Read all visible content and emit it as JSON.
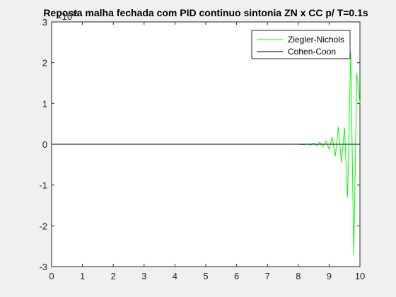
{
  "chart_data": {
    "type": "line",
    "title": "Reposta malha fechada com PID continuo sintonia ZN x CC p/ T=0.1s",
    "xlabel": "",
    "ylabel": "",
    "xlim": [
      0,
      10
    ],
    "ylim": [
      -3,
      3
    ],
    "x_ticks": [
      "0",
      "1",
      "2",
      "3",
      "4",
      "5",
      "6",
      "7",
      "8",
      "9",
      "10"
    ],
    "y_ticks": [
      "3",
      "2",
      "1",
      "0",
      "-1",
      "-2",
      "-3"
    ],
    "y_exponent_label": "×10",
    "y_exponent": "15",
    "grid": false,
    "legend_position": "top-right",
    "series": [
      {
        "name": "Ziegler-Nichols",
        "color": "#00ff00",
        "x": [
          0,
          8.0,
          8.2,
          8.3,
          8.4,
          8.5,
          8.6,
          8.7,
          8.8,
          8.9,
          9.0,
          9.1,
          9.2,
          9.3,
          9.4,
          9.5,
          9.6,
          9.7,
          9.8,
          9.9,
          10.0
        ],
        "y": [
          0,
          0,
          -0.01,
          0.01,
          -0.02,
          0.03,
          -0.04,
          0.05,
          -0.06,
          0.08,
          -0.12,
          0.18,
          -0.3,
          0.42,
          -0.45,
          0.41,
          -1.3,
          2.25,
          -2.7,
          1.75,
          1.0
        ]
      },
      {
        "name": "Cohen-Coon",
        "color": "#000000",
        "x": [
          0,
          10
        ],
        "y": [
          0,
          0
        ]
      }
    ]
  }
}
